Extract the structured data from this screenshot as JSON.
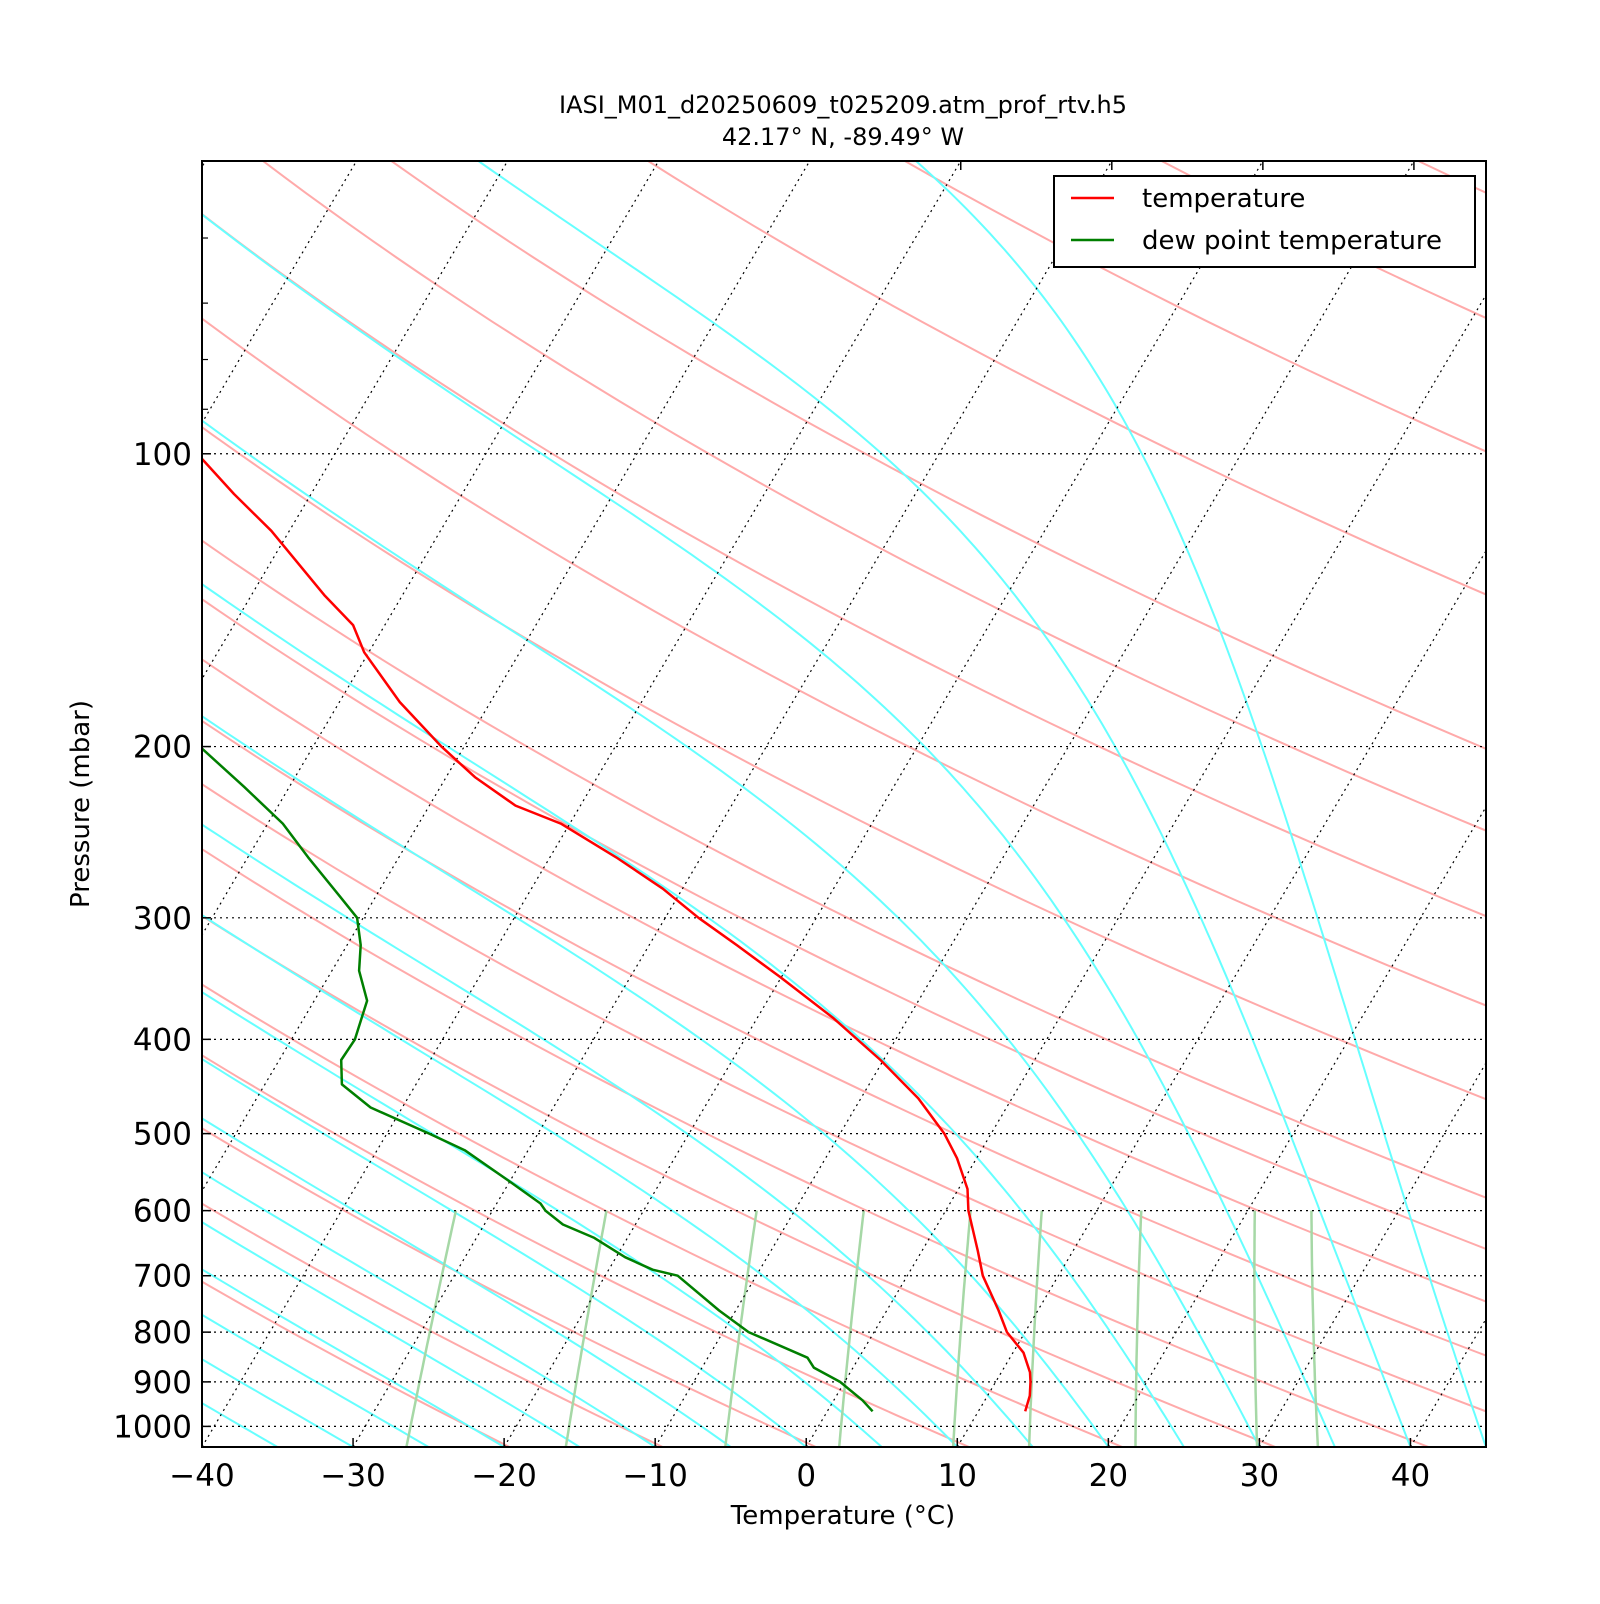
{
  "chart_data": {
    "type": "line",
    "chart_kind": "skew-T log-P diagram",
    "title": "IASI_M01_d20250609_t025209.atm_prof_rtv.h5",
    "subtitle": "42.17° N, -89.49° W",
    "xlabel": "Temperature (°C)",
    "ylabel": "Pressure (mbar)",
    "x_ticks": [
      {
        "value": -40,
        "label": "−40"
      },
      {
        "value": -30,
        "label": "−30"
      },
      {
        "value": -20,
        "label": "−20"
      },
      {
        "value": -10,
        "label": "−10"
      },
      {
        "value": 0,
        "label": "0"
      },
      {
        "value": 10,
        "label": "10"
      },
      {
        "value": 20,
        "label": "20"
      },
      {
        "value": 30,
        "label": "30"
      },
      {
        "value": 40,
        "label": "40"
      }
    ],
    "y_ticks": [
      {
        "value": 100,
        "label": "100"
      },
      {
        "value": 200,
        "label": "200"
      },
      {
        "value": 300,
        "label": "300"
      },
      {
        "value": 400,
        "label": "400"
      },
      {
        "value": 500,
        "label": "500"
      },
      {
        "value": 600,
        "label": "600"
      },
      {
        "value": 700,
        "label": "700"
      },
      {
        "value": 800,
        "label": "800"
      },
      {
        "value": 900,
        "label": "900"
      },
      {
        "value": 1000,
        "label": "1000"
      }
    ],
    "xlim": [
      -40,
      45
    ],
    "ylim": [
      1050,
      50
    ],
    "y_scale": "log",
    "skewed_isotherms": true,
    "isobar_grid": "dotted at labeled pressures",
    "legend": {
      "position": "top-right",
      "entries": [
        {
          "label": "temperature",
          "color": "#ff0000"
        },
        {
          "label": "dew point temperature",
          "color": "#007f00"
        }
      ]
    },
    "background_lines": {
      "isotherms": {
        "color": "#000000",
        "style": "dotted",
        "start_temps": [
          -120,
          -110,
          -100,
          -90,
          -80,
          -70,
          -60,
          -50,
          -40,
          -30,
          -20,
          -10,
          0,
          10,
          20,
          30,
          40
        ]
      },
      "dry_adiabats": {
        "color": "#ffaaaa",
        "theta_K": [
          250,
          260,
          270,
          280,
          290,
          300,
          310,
          320,
          330,
          340,
          350,
          360,
          380,
          400,
          420,
          440,
          460,
          500,
          540,
          580,
          620
        ]
      },
      "moist_adiabats": {
        "color": "#66ffff",
        "surface_temps_C": [
          -40,
          -35,
          -30,
          -25,
          -20,
          -15,
          -10,
          -5,
          0,
          5,
          10,
          15,
          20,
          25,
          30,
          35,
          40,
          45
        ]
      },
      "mixing_ratio_lines": {
        "color": "#a6d8a6",
        "dewpoints_at_1000_C": [
          -27,
          -16.5,
          -6,
          1.5,
          9,
          14,
          21,
          29,
          33
        ]
      }
    },
    "series": [
      {
        "name": "temperature",
        "color": "#ff0000",
        "points": [
          [
            965,
            13.1
          ],
          [
            930,
            12.8
          ],
          [
            900,
            12.3
          ],
          [
            880,
            11.9
          ],
          [
            840,
            10.7
          ],
          [
            800,
            8.8
          ],
          [
            760,
            7.4
          ],
          [
            700,
            5.0
          ],
          [
            660,
            3.7
          ],
          [
            600,
            1.5
          ],
          [
            570,
            0.6
          ],
          [
            530,
            -1.3
          ],
          [
            500,
            -3.1
          ],
          [
            460,
            -6.2
          ],
          [
            420,
            -10.2
          ],
          [
            380,
            -15.0
          ],
          [
            345,
            -20.1
          ],
          [
            320,
            -24.2
          ],
          [
            300,
            -27.8
          ],
          [
            280,
            -31.3
          ],
          [
            260,
            -35.6
          ],
          [
            240,
            -40.6
          ],
          [
            230,
            -44.3
          ],
          [
            215,
            -48.1
          ],
          [
            200,
            -51.5
          ],
          [
            180,
            -56.0
          ],
          [
            160,
            -60.3
          ],
          [
            150,
            -62.1
          ],
          [
            140,
            -65.1
          ],
          [
            120,
            -71.2
          ],
          [
            110,
            -75.1
          ],
          [
            100,
            -79.1
          ],
          [
            90,
            -84.0
          ],
          [
            80,
            -89.3
          ],
          [
            70,
            -95.1
          ],
          [
            63,
            -99.6
          ],
          [
            55,
            -104.8
          ],
          [
            50,
            -109.1
          ]
        ]
      },
      {
        "name": "dew point temperature",
        "color": "#007f00",
        "points": [
          [
            965,
            3.0
          ],
          [
            940,
            1.9
          ],
          [
            900,
            -0.3
          ],
          [
            870,
            -2.6
          ],
          [
            850,
            -3.4
          ],
          [
            800,
            -8.3
          ],
          [
            760,
            -11.1
          ],
          [
            700,
            -15.2
          ],
          [
            690,
            -17.1
          ],
          [
            670,
            -19.4
          ],
          [
            640,
            -22.2
          ],
          [
            620,
            -24.8
          ],
          [
            600,
            -26.5
          ],
          [
            590,
            -27.1
          ],
          [
            560,
            -30.0
          ],
          [
            520,
            -34.2
          ],
          [
            500,
            -37.2
          ],
          [
            470,
            -42.1
          ],
          [
            445,
            -44.9
          ],
          [
            420,
            -45.9
          ],
          [
            400,
            -45.8
          ],
          [
            365,
            -46.5
          ],
          [
            340,
            -48.2
          ],
          [
            320,
            -49.1
          ],
          [
            300,
            -50.4
          ],
          [
            285,
            -52.4
          ],
          [
            260,
            -56.0
          ],
          [
            240,
            -59.0
          ],
          [
            220,
            -63.0
          ],
          [
            200,
            -67.5
          ],
          [
            180,
            -71.6
          ],
          [
            160,
            -76.4
          ],
          [
            150,
            -80.7
          ],
          [
            140,
            -84.8
          ],
          [
            130,
            -88.2
          ],
          [
            120,
            -89.9
          ],
          [
            110,
            -91.4
          ],
          [
            100,
            -93.0
          ],
          [
            90,
            -94.5
          ],
          [
            80,
            -96.3
          ],
          [
            70,
            -98.1
          ],
          [
            60,
            -100.3
          ],
          [
            50,
            -103.1
          ]
        ]
      }
    ]
  }
}
